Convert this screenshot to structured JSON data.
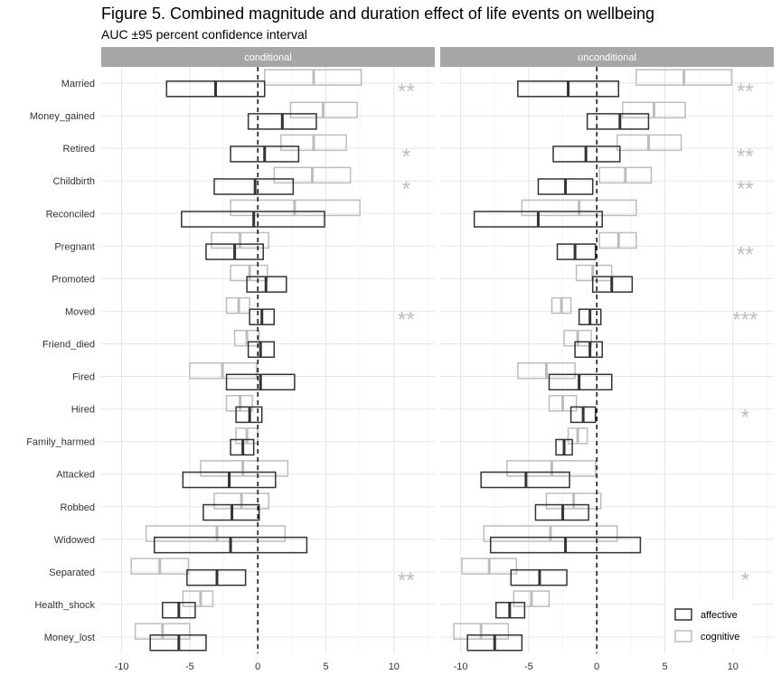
{
  "chart_data": {
    "type": "bar",
    "title": "Figure 5. Combined magnitude and duration effect of life events on wellbeing",
    "subtitle": "AUC ±95 percent confidence interval",
    "xlabel": "",
    "ylabel": "",
    "xlim": [
      -11.5,
      13
    ],
    "xticks": [
      -10,
      -5,
      0,
      5,
      10
    ],
    "xtick_labels": [
      "-10",
      "-5",
      "0",
      "5",
      "10"
    ],
    "reference_line": 0,
    "categories": [
      "Married",
      "Money_gained",
      "Retired",
      "Childbirth",
      "Reconciled",
      "Pregnant",
      "Promoted",
      "Moved",
      "Friend_died",
      "Fired",
      "Hired",
      "Family_harmed",
      "Attacked",
      "Robbed",
      "Widowed",
      "Separated",
      "Health_shock",
      "Money_lost"
    ],
    "legend": {
      "placement": "bottom-right",
      "items": [
        {
          "key": "affective",
          "label": "affective",
          "color": "#333333"
        },
        {
          "key": "cognitive",
          "label": "cognitive",
          "color": "#bdbdbd"
        }
      ]
    },
    "panels": [
      {
        "label": "conditional",
        "stars": [
          "**",
          "",
          "*",
          "*",
          "",
          "",
          "",
          "**",
          "",
          "",
          "",
          "",
          "",
          "",
          "",
          "**",
          "",
          ""
        ],
        "series": [
          {
            "name": "affective",
            "estimate": [
              -3.1,
              1.8,
              0.5,
              -0.2,
              -0.3,
              -1.7,
              0.6,
              0.3,
              0.2,
              0.2,
              -0.6,
              -1.1,
              -2.1,
              -1.9,
              -2.0,
              -3.0,
              -5.8,
              -5.8
            ],
            "lower": [
              -6.7,
              -0.7,
              -2.0,
              -3.2,
              -5.6,
              -3.8,
              -0.8,
              -0.6,
              -0.7,
              -2.3,
              -1.6,
              -2.0,
              -5.5,
              -4.0,
              -7.6,
              -5.2,
              -7.0,
              -7.9
            ],
            "upper": [
              0.5,
              4.3,
              3.0,
              2.6,
              4.9,
              0.4,
              2.1,
              1.2,
              1.2,
              2.7,
              0.3,
              -0.3,
              1.3,
              0.1,
              3.6,
              -0.9,
              -4.6,
              -3.8
            ]
          },
          {
            "name": "cognitive",
            "estimate": [
              4.1,
              4.8,
              4.1,
              4.0,
              2.7,
              -1.3,
              -0.6,
              -1.4,
              -0.8,
              -2.6,
              -1.3,
              -0.8,
              -1.1,
              -1.2,
              -3.0,
              -7.2,
              -4.2,
              -7.0
            ],
            "lower": [
              0.5,
              2.4,
              1.7,
              1.2,
              -2.0,
              -3.4,
              -2.0,
              -2.3,
              -1.7,
              -5.0,
              -2.3,
              -1.6,
              -4.2,
              -3.2,
              -8.2,
              -9.3,
              -5.5,
              -9.0
            ],
            "upper": [
              7.6,
              7.3,
              6.5,
              6.8,
              7.5,
              0.8,
              0.7,
              -0.6,
              0.1,
              -0.1,
              -0.4,
              0.0,
              2.2,
              0.8,
              2.0,
              -5.1,
              -3.3,
              -5.0
            ]
          }
        ]
      },
      {
        "label": "unconditional",
        "stars": [
          "**",
          "",
          "**",
          "**",
          "",
          "**",
          "",
          "***",
          "",
          "",
          "*",
          "",
          "",
          "",
          "",
          "*",
          "",
          ""
        ],
        "series": [
          {
            "name": "affective",
            "estimate": [
              -2.1,
              1.7,
              -0.8,
              -2.3,
              -4.3,
              -1.6,
              1.1,
              -0.5,
              -0.5,
              -1.3,
              -1.0,
              -2.4,
              -5.2,
              -2.5,
              -2.3,
              -4.2,
              -6.4,
              -7.5
            ],
            "lower": [
              -5.8,
              -0.7,
              -3.2,
              -4.3,
              -9.0,
              -2.9,
              -0.3,
              -1.3,
              -1.6,
              -3.5,
              -1.9,
              -3.0,
              -8.5,
              -4.5,
              -7.8,
              -6.3,
              -7.4,
              -9.5
            ],
            "upper": [
              1.6,
              3.8,
              1.7,
              -0.3,
              0.4,
              -0.1,
              2.6,
              0.3,
              0.4,
              1.1,
              -0.1,
              -1.8,
              -2.0,
              -0.6,
              3.2,
              -2.2,
              -5.3,
              -5.5
            ]
          },
          {
            "name": "cognitive",
            "estimate": [
              6.4,
              4.2,
              3.8,
              2.1,
              -1.3,
              1.6,
              -0.3,
              -2.6,
              -1.4,
              -3.7,
              -2.5,
              -1.4,
              -3.3,
              -1.7,
              -3.4,
              -7.9,
              -4.8,
              -8.5
            ],
            "lower": [
              2.9,
              1.9,
              1.5,
              0.2,
              -5.5,
              0.2,
              -1.5,
              -3.3,
              -2.4,
              -5.8,
              -3.5,
              -2.1,
              -6.6,
              -3.7,
              -8.3,
              -9.9,
              -6.1,
              -10.5
            ],
            "upper": [
              9.9,
              6.5,
              6.2,
              4.0,
              2.9,
              2.9,
              1.1,
              -1.9,
              -0.4,
              -1.6,
              -1.5,
              -0.7,
              -0.1,
              0.3,
              1.5,
              -5.9,
              -3.5,
              -6.5
            ]
          }
        ]
      }
    ]
  }
}
